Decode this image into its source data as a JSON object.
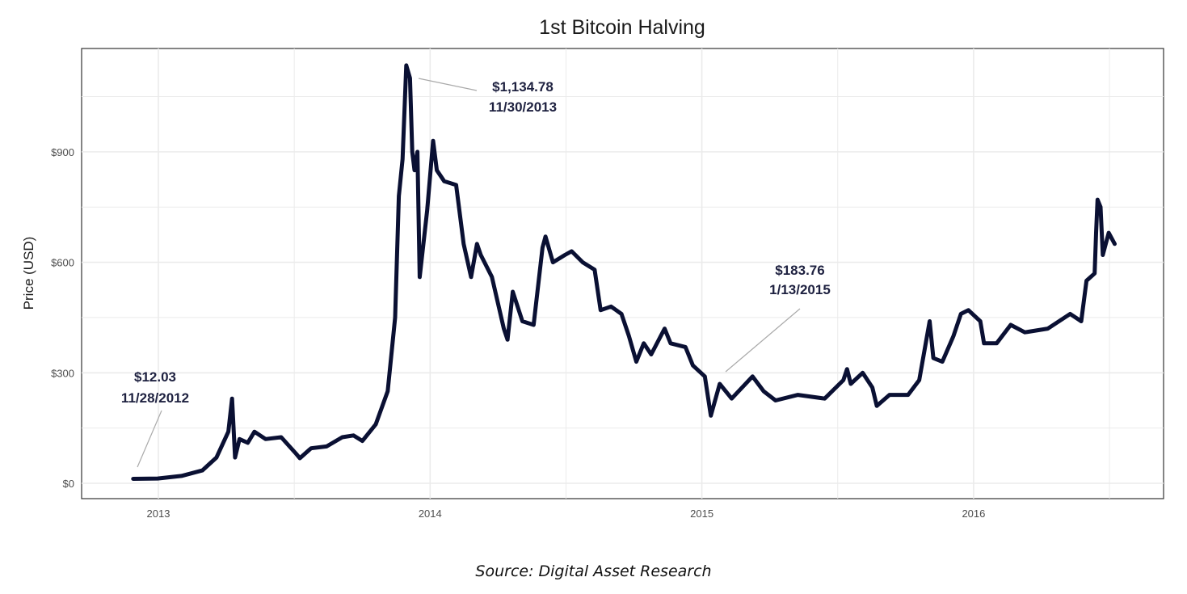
{
  "chart_data": {
    "type": "line",
    "title": "1st Bitcoin Halving",
    "xlabel": "",
    "ylabel": "Price (USD)",
    "x_ticks": [
      "2013",
      "2014",
      "2015",
      "2016"
    ],
    "y_ticks": [
      "$0",
      "$300",
      "$600",
      "$900"
    ],
    "y_tick_values": [
      0,
      300,
      600,
      900
    ],
    "ylim": [
      -45,
      1180
    ],
    "xlim": [
      "2012-09-15",
      "2016-09-01"
    ],
    "grid": true,
    "line_color": "#0a1033",
    "series": [
      {
        "points": [
          [
            "2012-11-28",
            12.03
          ],
          [
            "2012-12-31",
            13
          ],
          [
            "2013-02-01",
            20
          ],
          [
            "2013-03-01",
            35
          ],
          [
            "2013-03-20",
            70
          ],
          [
            "2013-04-05",
            140
          ],
          [
            "2013-04-10",
            230
          ],
          [
            "2013-04-14",
            70
          ],
          [
            "2013-04-20",
            120
          ],
          [
            "2013-05-01",
            110
          ],
          [
            "2013-05-10",
            140
          ],
          [
            "2013-05-25",
            120
          ],
          [
            "2013-06-15",
            125
          ],
          [
            "2013-07-05",
            80
          ],
          [
            "2013-07-10",
            68
          ],
          [
            "2013-07-25",
            95
          ],
          [
            "2013-08-15",
            100
          ],
          [
            "2013-09-05",
            125
          ],
          [
            "2013-09-20",
            130
          ],
          [
            "2013-10-02",
            115
          ],
          [
            "2013-10-20",
            160
          ],
          [
            "2013-11-05",
            250
          ],
          [
            "2013-11-15",
            450
          ],
          [
            "2013-11-20",
            780
          ],
          [
            "2013-11-25",
            880
          ],
          [
            "2013-11-30",
            1134.78
          ],
          [
            "2013-12-05",
            1100
          ],
          [
            "2013-12-08",
            900
          ],
          [
            "2013-12-11",
            850
          ],
          [
            "2013-12-15",
            900
          ],
          [
            "2013-12-18",
            560
          ],
          [
            "2013-12-23",
            650
          ],
          [
            "2013-12-28",
            740
          ],
          [
            "2014-01-05",
            930
          ],
          [
            "2014-01-10",
            850
          ],
          [
            "2014-01-20",
            820
          ],
          [
            "2014-02-05",
            810
          ],
          [
            "2014-02-15",
            650
          ],
          [
            "2014-02-25",
            560
          ],
          [
            "2014-03-05",
            650
          ],
          [
            "2014-03-10",
            620
          ],
          [
            "2014-03-25",
            560
          ],
          [
            "2014-04-10",
            420
          ],
          [
            "2014-04-15",
            390
          ],
          [
            "2014-04-22",
            520
          ],
          [
            "2014-05-05",
            440
          ],
          [
            "2014-05-20",
            430
          ],
          [
            "2014-06-01",
            640
          ],
          [
            "2014-06-05",
            670
          ],
          [
            "2014-06-15",
            600
          ],
          [
            "2014-07-01",
            620
          ],
          [
            "2014-07-10",
            630
          ],
          [
            "2014-07-25",
            600
          ],
          [
            "2014-08-10",
            580
          ],
          [
            "2014-08-18",
            470
          ],
          [
            "2014-09-01",
            480
          ],
          [
            "2014-09-15",
            460
          ],
          [
            "2014-09-25",
            400
          ],
          [
            "2014-10-05",
            330
          ],
          [
            "2014-10-15",
            380
          ],
          [
            "2014-10-25",
            350
          ],
          [
            "2014-11-12",
            420
          ],
          [
            "2014-11-20",
            380
          ],
          [
            "2014-12-10",
            370
          ],
          [
            "2014-12-20",
            320
          ],
          [
            "2015-01-05",
            290
          ],
          [
            "2015-01-13",
            183.76
          ],
          [
            "2015-01-25",
            270
          ],
          [
            "2015-02-10",
            230
          ],
          [
            "2015-03-10",
            290
          ],
          [
            "2015-03-25",
            250
          ],
          [
            "2015-04-10",
            225
          ],
          [
            "2015-05-10",
            240
          ],
          [
            "2015-06-15",
            230
          ],
          [
            "2015-07-10",
            280
          ],
          [
            "2015-07-15",
            310
          ],
          [
            "2015-07-20",
            270
          ],
          [
            "2015-08-05",
            300
          ],
          [
            "2015-08-18",
            260
          ],
          [
            "2015-08-24",
            210
          ],
          [
            "2015-09-10",
            240
          ],
          [
            "2015-10-05",
            240
          ],
          [
            "2015-10-20",
            280
          ],
          [
            "2015-11-03",
            440
          ],
          [
            "2015-11-08",
            340
          ],
          [
            "2015-11-20",
            330
          ],
          [
            "2015-12-05",
            400
          ],
          [
            "2015-12-15",
            460
          ],
          [
            "2015-12-25",
            470
          ],
          [
            "2016-01-10",
            440
          ],
          [
            "2016-01-15",
            380
          ],
          [
            "2016-02-01",
            380
          ],
          [
            "2016-02-20",
            430
          ],
          [
            "2016-03-10",
            410
          ],
          [
            "2016-04-10",
            420
          ],
          [
            "2016-05-10",
            460
          ],
          [
            "2016-05-25",
            440
          ],
          [
            "2016-06-01",
            550
          ],
          [
            "2016-06-12",
            570
          ],
          [
            "2016-06-14",
            680
          ],
          [
            "2016-06-16",
            770
          ],
          [
            "2016-06-20",
            750
          ],
          [
            "2016-06-23",
            620
          ],
          [
            "2016-07-01",
            680
          ],
          [
            "2016-07-09",
            650
          ]
        ]
      }
    ],
    "annotations": [
      {
        "price": "$12.03",
        "date": "11/28/2012",
        "x": "2012-11-28",
        "y": 12.03
      },
      {
        "price": "$1,134.78",
        "date": "11/30/2013",
        "x": "2013-11-30",
        "y": 1134.78
      },
      {
        "price": "$183.76",
        "date": "1/13/2015",
        "x": "2015-01-13",
        "y": 183.76
      }
    ]
  },
  "source": "Source: Digital Asset Research"
}
